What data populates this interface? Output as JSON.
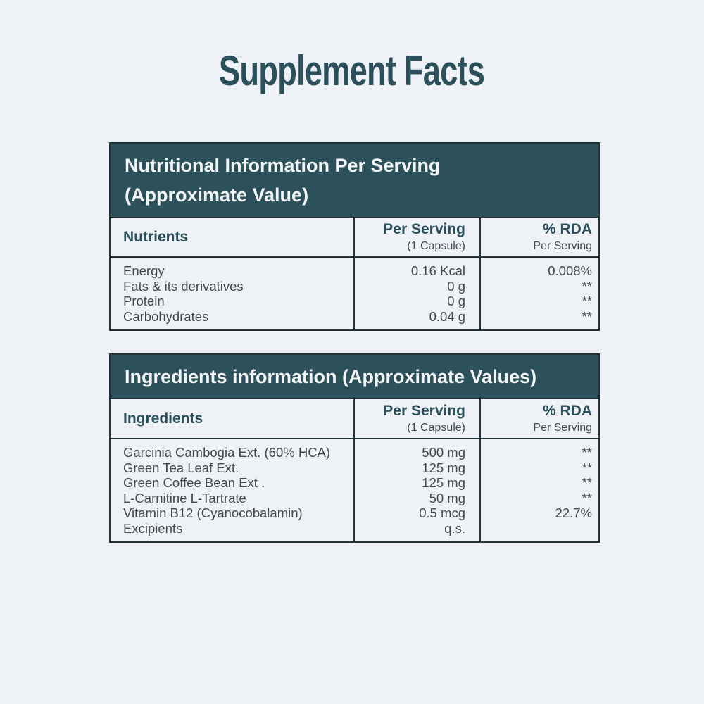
{
  "page": {
    "title": "Supplement Facts",
    "colors": {
      "background": "#eef2f7",
      "accent_band": "#2d515a",
      "heading_text": "#2b505b",
      "body_text": "#45494e",
      "border": "#22333a"
    }
  },
  "nutrition_table": {
    "title_line1": "Nutritional Information Per Serving",
    "title_line2": "(Approximate Value)",
    "columns": {
      "name": "Nutrients",
      "serving": "Per Serving",
      "serving_sub": "(1 Capsule)",
      "rda": "% RDA",
      "rda_sub": "Per Serving"
    },
    "rows": [
      {
        "name": "Energy",
        "amount": "0.16 Kcal",
        "rda": "0.008%"
      },
      {
        "name": "Fats & its derivatives",
        "amount": "0 g",
        "rda": "**"
      },
      {
        "name": "Protein",
        "amount": "0 g",
        "rda": "**"
      },
      {
        "name": "Carbohydrates",
        "amount": "0.04 g",
        "rda": "**"
      }
    ]
  },
  "ingredients_table": {
    "title": "Ingredients information (Approximate Values)",
    "columns": {
      "name": "Ingredients",
      "serving": "Per Serving",
      "serving_sub": "(1 Capsule)",
      "rda": "% RDA",
      "rda_sub": "Per Serving"
    },
    "rows": [
      {
        "name": "Garcinia Cambogia Ext. (60% HCA)",
        "amount": "500 mg",
        "rda": "**"
      },
      {
        "name": "Green Tea Leaf Ext.",
        "amount": "125 mg",
        "rda": "**"
      },
      {
        "name": "Green Coffee Bean Ext .",
        "amount": "125 mg",
        "rda": "**"
      },
      {
        "name": "L-Carnitine L-Tartrate",
        "amount": "50 mg",
        "rda": "**"
      },
      {
        "name": "Vitamin B12 (Cyanocobalamin)",
        "amount": "0.5 mcg",
        "rda": "22.7%"
      },
      {
        "name": "Excipients",
        "amount": "q.s.",
        "rda": ""
      }
    ]
  }
}
